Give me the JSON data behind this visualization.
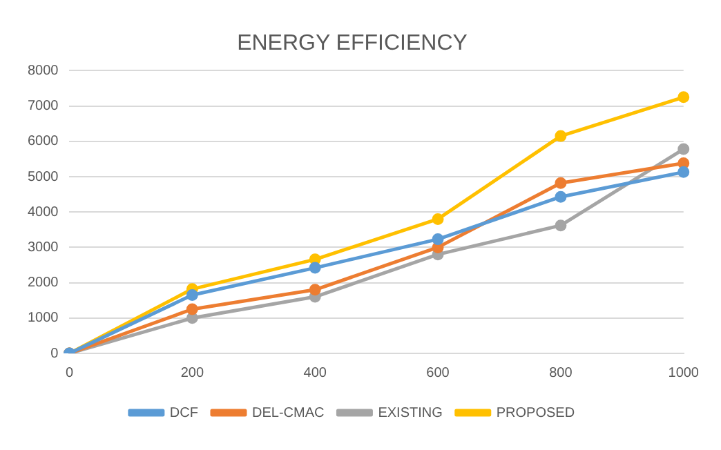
{
  "chart_data": {
    "type": "line",
    "title": "ENERGY EFFICIENCY",
    "categories": [
      "0",
      "200",
      "400",
      "600",
      "800",
      "1000"
    ],
    "series": [
      {
        "name": "DCF",
        "color": "#5b9bd5",
        "values": [
          0,
          1650,
          2420,
          3230,
          4430,
          5130
        ]
      },
      {
        "name": "DEL-CMAC",
        "color": "#ed7d31",
        "values": [
          0,
          1250,
          1800,
          3000,
          4820,
          5380
        ]
      },
      {
        "name": "EXISTING",
        "color": "#a5a5a5",
        "values": [
          0,
          1000,
          1600,
          2800,
          3620,
          5780
        ]
      },
      {
        "name": "PROPOSED",
        "color": "#ffc000",
        "values": [
          0,
          1820,
          2660,
          3800,
          6150,
          7250
        ]
      }
    ],
    "ylim": [
      0,
      8000
    ],
    "yticks": [
      0,
      1000,
      2000,
      3000,
      4000,
      5000,
      6000,
      7000,
      8000
    ],
    "grid": "y",
    "legend": "bottom",
    "marker": "circle",
    "line_style": "solid"
  }
}
